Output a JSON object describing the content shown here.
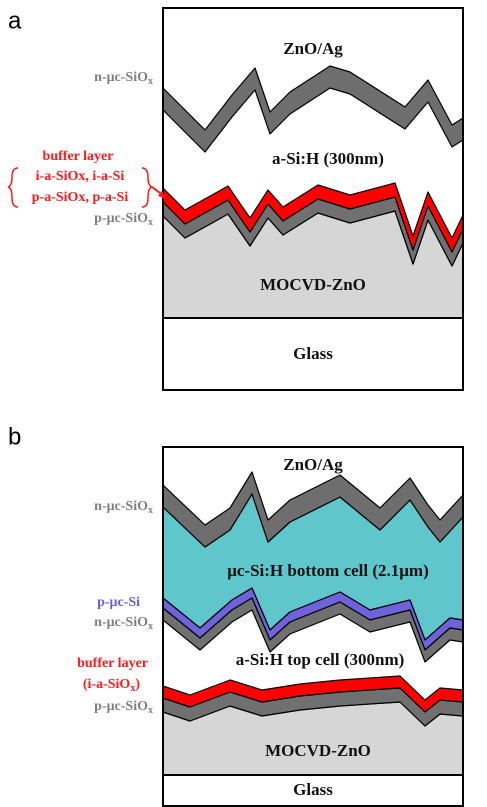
{
  "panel_a": {
    "label": "a",
    "regions": {
      "top": "ZnO/Ag",
      "absorber": "a-Si:H (300nm)",
      "substrate": "MOCVD-ZnO",
      "glass": "Glass"
    },
    "side_labels": {
      "n_layer": {
        "text": "n-μc-SiO",
        "sub": "x"
      },
      "buffer_title": "buffer layer",
      "buffer_options": [
        "i-a-SiOx, i-a-Si",
        "p-a-SiOx, p-a-Si"
      ],
      "p_layer": {
        "text": "p-μc-SiO",
        "sub": "x"
      }
    }
  },
  "panel_b": {
    "label": "b",
    "regions": {
      "top": "ZnO/Ag",
      "bottom_cell": "μc-Si:H  bottom cell (2.1μm)",
      "top_cell": "a-Si:H top cell (300nm)",
      "substrate": "MOCVD-ZnO",
      "glass": "Glass"
    },
    "side_labels": {
      "n_layer_top": {
        "text": "n-μc-SiO",
        "sub": "x"
      },
      "p_layer_mid": "p-μc-Si",
      "n_layer_mid": {
        "text": "n-μc-SiO",
        "sub": "x"
      },
      "buffer_title": "buffer layer",
      "buffer_option": {
        "text": "(i-a-SiO",
        "sub": "x",
        "tail": ")"
      },
      "p_layer": {
        "text": "p-μc-SiO",
        "sub": "x"
      }
    }
  }
}
